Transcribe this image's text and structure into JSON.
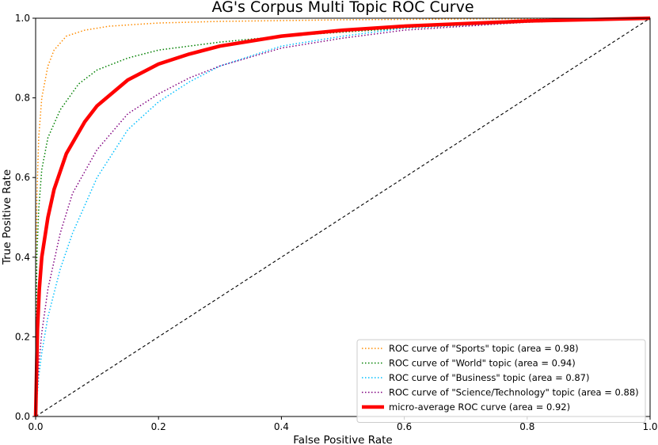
{
  "chart_data": {
    "type": "line",
    "title": "AG's Corpus Multi Topic ROC Curve",
    "xlabel": "False Positive Rate",
    "ylabel": "True Positive Rate",
    "xlim": [
      0.0,
      1.0
    ],
    "ylim": [
      0.0,
      1.0
    ],
    "xticks": [
      "0.0",
      "0.2",
      "0.4",
      "0.6",
      "0.8",
      "1.0"
    ],
    "yticks": [
      "0.0",
      "0.2",
      "0.4",
      "0.6",
      "0.8",
      "1.0"
    ],
    "grid": false,
    "legend_position": "lower-right",
    "series": [
      {
        "name": "ROC curve of \"Sports\" topic (area = 0.98)",
        "color": "#ff8c00",
        "style": "dotted",
        "x": [
          0,
          0.002,
          0.005,
          0.01,
          0.02,
          0.03,
          0.05,
          0.08,
          0.12,
          0.2,
          0.3,
          0.5,
          0.7,
          1.0
        ],
        "y": [
          0,
          0.55,
          0.7,
          0.8,
          0.88,
          0.92,
          0.955,
          0.97,
          0.98,
          0.988,
          0.992,
          0.996,
          0.998,
          1.0
        ]
      },
      {
        "name": "ROC curve of \"World\" topic (area = 0.94)",
        "color": "#008000",
        "style": "dotted",
        "x": [
          0,
          0.002,
          0.005,
          0.01,
          0.02,
          0.04,
          0.07,
          0.1,
          0.15,
          0.2,
          0.3,
          0.4,
          0.6,
          0.8,
          1.0
        ],
        "y": [
          0,
          0.4,
          0.52,
          0.62,
          0.7,
          0.77,
          0.835,
          0.87,
          0.9,
          0.92,
          0.94,
          0.955,
          0.975,
          0.99,
          1.0
        ]
      },
      {
        "name": "ROC curve of \"Business\" topic (area = 0.87)",
        "color": "#00bfff",
        "style": "dotted",
        "x": [
          0,
          0.005,
          0.01,
          0.02,
          0.04,
          0.06,
          0.1,
          0.15,
          0.2,
          0.25,
          0.3,
          0.4,
          0.5,
          0.6,
          0.8,
          1.0
        ],
        "y": [
          0,
          0.1,
          0.16,
          0.25,
          0.37,
          0.46,
          0.6,
          0.72,
          0.79,
          0.84,
          0.88,
          0.93,
          0.955,
          0.975,
          0.99,
          1.0
        ]
      },
      {
        "name": "ROC curve of \"Science/Technology\" topic (area = 0.88)",
        "color": "#800080",
        "style": "dotted",
        "x": [
          0,
          0.005,
          0.01,
          0.02,
          0.04,
          0.06,
          0.1,
          0.15,
          0.2,
          0.25,
          0.3,
          0.4,
          0.5,
          0.6,
          0.8,
          1.0
        ],
        "y": [
          0,
          0.13,
          0.21,
          0.32,
          0.46,
          0.56,
          0.67,
          0.76,
          0.81,
          0.85,
          0.88,
          0.925,
          0.95,
          0.97,
          0.99,
          1.0
        ]
      },
      {
        "name": "micro-average ROC curve (area = 0.92)",
        "color": "#ff0000",
        "style": "solid-thick",
        "x": [
          0,
          0.003,
          0.006,
          0.01,
          0.02,
          0.03,
          0.05,
          0.08,
          0.1,
          0.15,
          0.2,
          0.25,
          0.3,
          0.4,
          0.5,
          0.6,
          0.8,
          1.0
        ],
        "y": [
          0,
          0.22,
          0.32,
          0.4,
          0.5,
          0.57,
          0.66,
          0.74,
          0.78,
          0.845,
          0.885,
          0.91,
          0.93,
          0.955,
          0.97,
          0.98,
          0.993,
          1.0
        ]
      },
      {
        "name": "",
        "color": "#000000",
        "style": "dashed",
        "x": [
          0,
          1
        ],
        "y": [
          0,
          1
        ]
      }
    ]
  }
}
